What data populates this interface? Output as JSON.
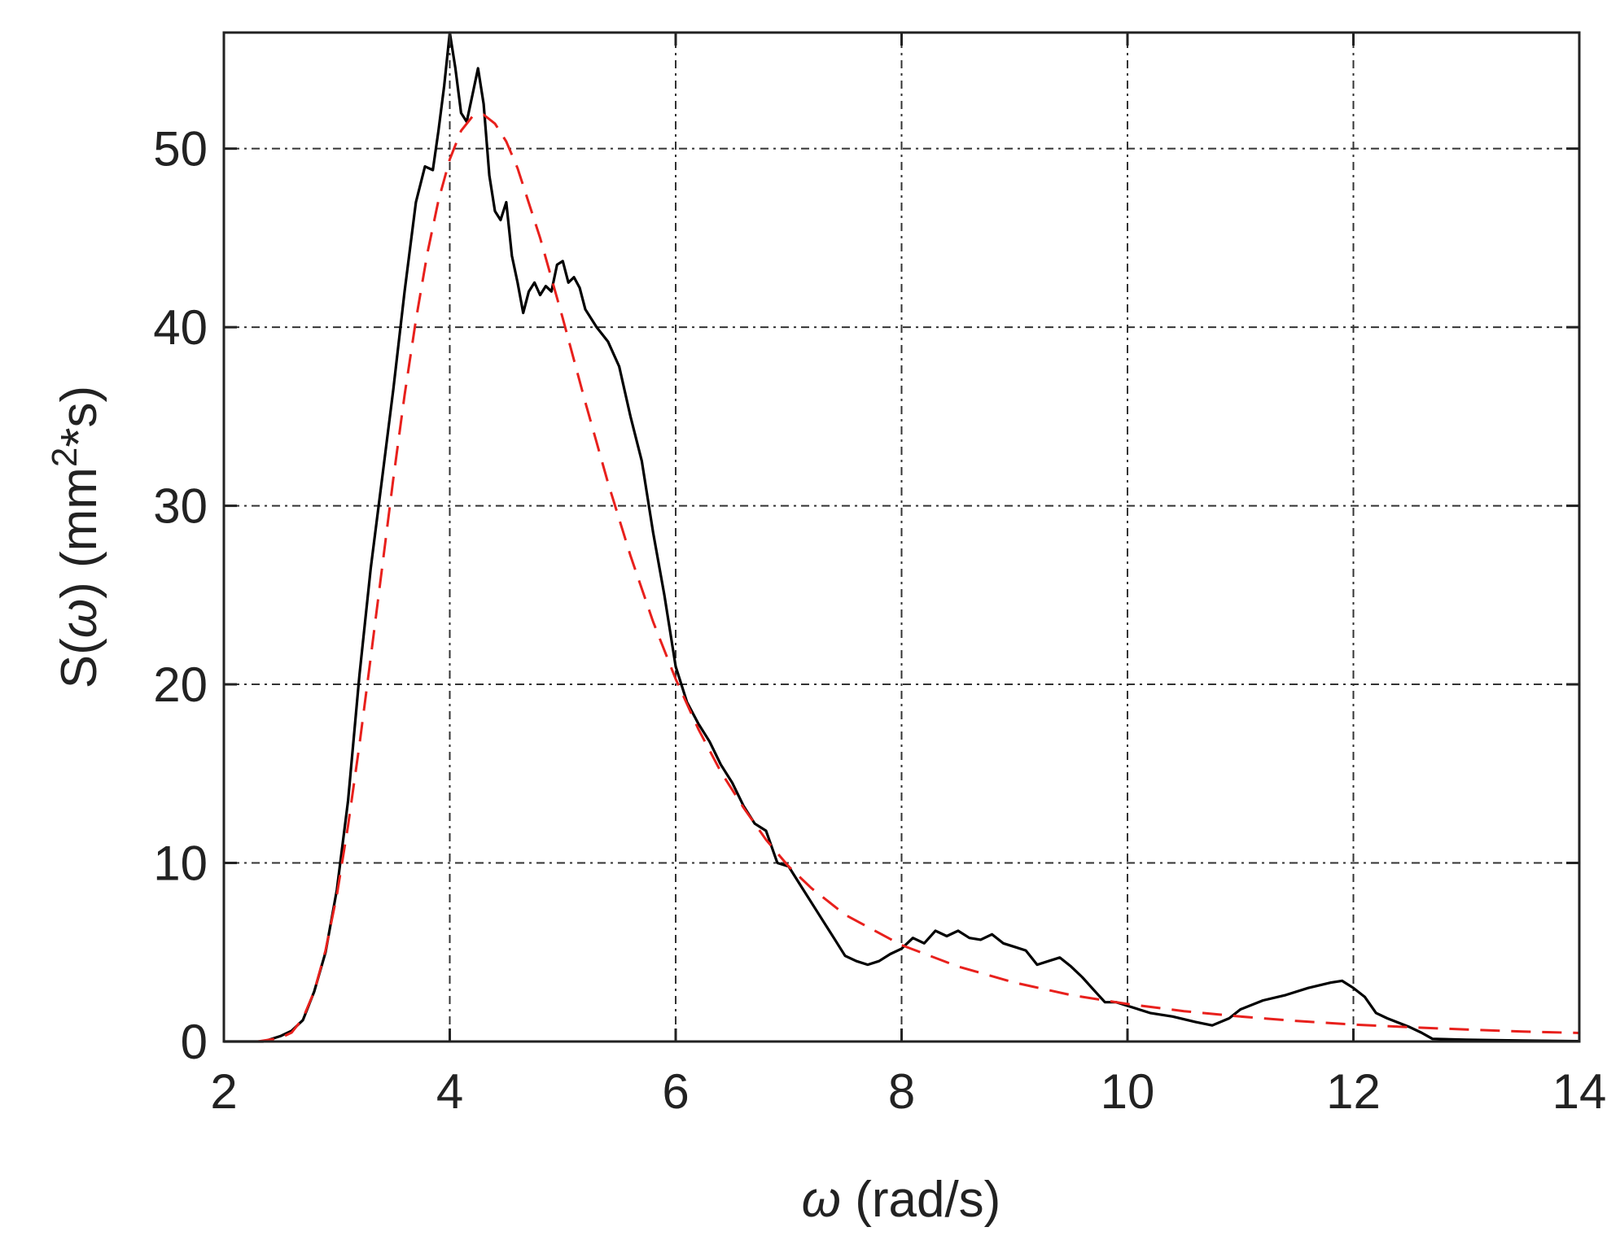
{
  "chart_data": {
    "type": "line",
    "title": "",
    "xlabel": {
      "symbol": "ω",
      "text": " (rad/s)"
    },
    "ylabel": {
      "prefix": "S(",
      "symbol": "ω",
      "suffix": ") (mm",
      "sup": "2",
      "post": "*s)"
    },
    "xlim": [
      2,
      14
    ],
    "ylim": [
      0,
      56.5
    ],
    "xticks": [
      2,
      4,
      6,
      8,
      10,
      12,
      14
    ],
    "yticks": [
      0,
      10,
      20,
      30,
      40,
      50
    ],
    "grid": true,
    "colors": {
      "measured": "#000000",
      "fit": "#e8201c",
      "axis": "#222222"
    },
    "series": [
      {
        "style": "solid",
        "color": "#000000",
        "points": [
          [
            2.0,
            0.0
          ],
          [
            2.35,
            0.0
          ],
          [
            2.5,
            0.3
          ],
          [
            2.6,
            0.6
          ],
          [
            2.7,
            1.2
          ],
          [
            2.8,
            2.8
          ],
          [
            2.9,
            5.0
          ],
          [
            3.0,
            8.5
          ],
          [
            3.1,
            13.5
          ],
          [
            3.2,
            20.5
          ],
          [
            3.3,
            26.5
          ],
          [
            3.4,
            31.5
          ],
          [
            3.5,
            36.5
          ],
          [
            3.6,
            42.0
          ],
          [
            3.7,
            47.0
          ],
          [
            3.78,
            49.0
          ],
          [
            3.85,
            48.8
          ],
          [
            3.9,
            51.0
          ],
          [
            3.95,
            53.5
          ],
          [
            4.0,
            56.5
          ],
          [
            4.05,
            54.5
          ],
          [
            4.1,
            52.0
          ],
          [
            4.15,
            51.5
          ],
          [
            4.2,
            53.0
          ],
          [
            4.25,
            54.5
          ],
          [
            4.3,
            52.5
          ],
          [
            4.35,
            48.5
          ],
          [
            4.4,
            46.5
          ],
          [
            4.45,
            46.0
          ],
          [
            4.5,
            47.0
          ],
          [
            4.55,
            44.0
          ],
          [
            4.6,
            42.5
          ],
          [
            4.65,
            40.8
          ],
          [
            4.7,
            42.0
          ],
          [
            4.75,
            42.5
          ],
          [
            4.8,
            41.8
          ],
          [
            4.85,
            42.3
          ],
          [
            4.9,
            42.0
          ],
          [
            4.95,
            43.5
          ],
          [
            5.0,
            43.7
          ],
          [
            5.05,
            42.5
          ],
          [
            5.1,
            42.8
          ],
          [
            5.15,
            42.2
          ],
          [
            5.2,
            41.0
          ],
          [
            5.3,
            40.0
          ],
          [
            5.4,
            39.2
          ],
          [
            5.5,
            37.8
          ],
          [
            5.6,
            35.0
          ],
          [
            5.7,
            32.5
          ],
          [
            5.8,
            28.5
          ],
          [
            5.9,
            25.0
          ],
          [
            6.0,
            21.0
          ],
          [
            6.1,
            19.0
          ],
          [
            6.2,
            17.8
          ],
          [
            6.3,
            16.8
          ],
          [
            6.4,
            15.5
          ],
          [
            6.5,
            14.5
          ],
          [
            6.6,
            13.2
          ],
          [
            6.7,
            12.2
          ],
          [
            6.8,
            11.8
          ],
          [
            6.9,
            10.0
          ],
          [
            7.0,
            9.8
          ],
          [
            7.1,
            8.8
          ],
          [
            7.2,
            7.8
          ],
          [
            7.3,
            6.8
          ],
          [
            7.4,
            5.8
          ],
          [
            7.5,
            4.8
          ],
          [
            7.6,
            4.5
          ],
          [
            7.7,
            4.3
          ],
          [
            7.8,
            4.5
          ],
          [
            7.9,
            4.9
          ],
          [
            8.0,
            5.2
          ],
          [
            8.1,
            5.8
          ],
          [
            8.2,
            5.5
          ],
          [
            8.3,
            6.2
          ],
          [
            8.4,
            5.9
          ],
          [
            8.5,
            6.2
          ],
          [
            8.6,
            5.8
          ],
          [
            8.7,
            5.7
          ],
          [
            8.8,
            6.0
          ],
          [
            8.9,
            5.5
          ],
          [
            9.0,
            5.3
          ],
          [
            9.1,
            5.1
          ],
          [
            9.2,
            4.3
          ],
          [
            9.3,
            4.5
          ],
          [
            9.4,
            4.7
          ],
          [
            9.5,
            4.2
          ],
          [
            9.6,
            3.6
          ],
          [
            9.7,
            2.9
          ],
          [
            9.8,
            2.2
          ],
          [
            9.9,
            2.2
          ],
          [
            10.0,
            2.0
          ],
          [
            10.2,
            1.6
          ],
          [
            10.4,
            1.4
          ],
          [
            10.6,
            1.1
          ],
          [
            10.75,
            0.9
          ],
          [
            10.9,
            1.3
          ],
          [
            11.0,
            1.8
          ],
          [
            11.2,
            2.3
          ],
          [
            11.4,
            2.6
          ],
          [
            11.6,
            3.0
          ],
          [
            11.8,
            3.3
          ],
          [
            11.9,
            3.4
          ],
          [
            12.0,
            3.0
          ],
          [
            12.1,
            2.5
          ],
          [
            12.2,
            1.6
          ],
          [
            12.3,
            1.3
          ],
          [
            12.5,
            0.8
          ],
          [
            12.6,
            0.5
          ],
          [
            12.7,
            0.15
          ],
          [
            13.0,
            0.1
          ],
          [
            13.5,
            0.05
          ],
          [
            14.0,
            0.02
          ]
        ]
      },
      {
        "style": "dashed",
        "color": "#e8201c",
        "points": [
          [
            2.0,
            0.0
          ],
          [
            2.3,
            0.0
          ],
          [
            2.5,
            0.2
          ],
          [
            2.6,
            0.5
          ],
          [
            2.7,
            1.3
          ],
          [
            2.8,
            2.8
          ],
          [
            2.9,
            5.1
          ],
          [
            3.0,
            8.2
          ],
          [
            3.1,
            12.1
          ],
          [
            3.2,
            16.6
          ],
          [
            3.3,
            21.5
          ],
          [
            3.4,
            26.5
          ],
          [
            3.5,
            31.5
          ],
          [
            3.6,
            36.2
          ],
          [
            3.7,
            40.4
          ],
          [
            3.8,
            44.1
          ],
          [
            3.9,
            47.1
          ],
          [
            4.0,
            49.4
          ],
          [
            4.1,
            51.0
          ],
          [
            4.2,
            51.8
          ],
          [
            4.3,
            51.9
          ],
          [
            4.4,
            51.4
          ],
          [
            4.5,
            50.4
          ],
          [
            4.6,
            48.9
          ],
          [
            4.8,
            45.0
          ],
          [
            5.0,
            40.5
          ],
          [
            5.2,
            35.8
          ],
          [
            5.4,
            31.3
          ],
          [
            5.6,
            27.2
          ],
          [
            5.8,
            23.5
          ],
          [
            6.0,
            20.3
          ],
          [
            6.2,
            17.5
          ],
          [
            6.4,
            15.1
          ],
          [
            6.6,
            13.1
          ],
          [
            6.8,
            11.3
          ],
          [
            7.0,
            9.8
          ],
          [
            7.2,
            8.6
          ],
          [
            7.5,
            7.1
          ],
          [
            8.0,
            5.4
          ],
          [
            8.5,
            4.2
          ],
          [
            9.0,
            3.3
          ],
          [
            9.5,
            2.6
          ],
          [
            10.0,
            2.1
          ],
          [
            10.5,
            1.7
          ],
          [
            11.0,
            1.4
          ],
          [
            11.5,
            1.15
          ],
          [
            12.0,
            0.95
          ],
          [
            12.5,
            0.8
          ],
          [
            13.0,
            0.67
          ],
          [
            13.5,
            0.56
          ],
          [
            14.0,
            0.48
          ]
        ]
      }
    ]
  }
}
